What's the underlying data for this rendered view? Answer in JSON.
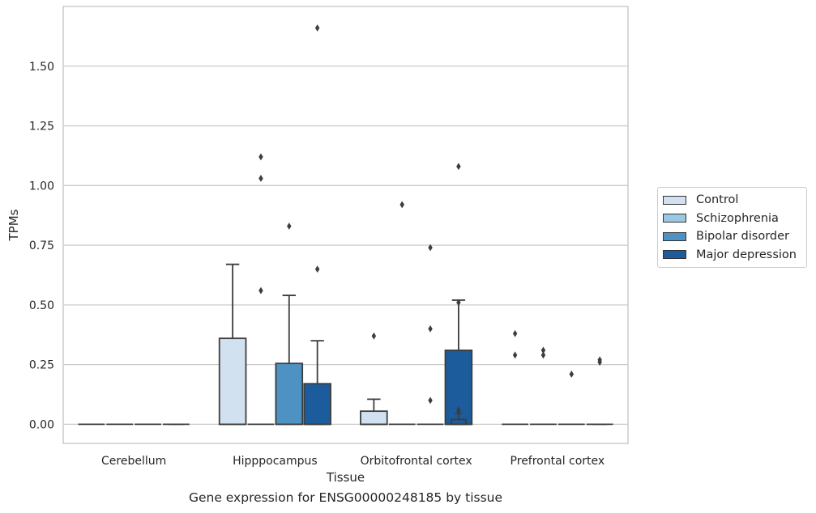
{
  "chart_data": {
    "type": "box",
    "xlabel": "Tissue",
    "ylabel": "TPMs",
    "caption": "Gene expression for ENSG00000248185 by tissue",
    "categories": [
      "Cerebellum",
      "Hipppocampus",
      "Orbitofrontal cortex",
      "Prefrontal cortex"
    ],
    "ylim": [
      -0.08,
      1.75
    ],
    "yticks": [
      0.0,
      0.25,
      0.5,
      0.75,
      1.0,
      1.25,
      1.5
    ],
    "ytick_labels": [
      "0.00",
      "0.25",
      "0.50",
      "0.75",
      "1.00",
      "1.25",
      "1.50"
    ],
    "grid": true,
    "legend_position": "right, outside plot",
    "series": [
      {
        "name": "Control",
        "color": "#d2e1f0",
        "boxes": [
          {
            "q1": 0,
            "median": 0,
            "q3": 0,
            "whisker_low": 0,
            "whisker_high": 0,
            "outliers": []
          },
          {
            "q1": 0,
            "median": 0,
            "q3": 0.36,
            "whisker_low": 0,
            "whisker_high": 0.67,
            "outliers": []
          },
          {
            "q1": 0,
            "median": 0,
            "q3": 0.055,
            "whisker_low": 0,
            "whisker_high": 0.105,
            "outliers": [
              0.37
            ]
          },
          {
            "q1": 0,
            "median": 0,
            "q3": 0,
            "whisker_low": 0,
            "whisker_high": 0,
            "outliers": [
              0.38,
              0.29
            ]
          }
        ]
      },
      {
        "name": "Schizophrenia",
        "color": "#9ac8e0",
        "boxes": [
          {
            "q1": 0,
            "median": 0,
            "q3": 0,
            "whisker_low": 0,
            "whisker_high": 0,
            "outliers": []
          },
          {
            "q1": 0,
            "median": 0,
            "q3": 0,
            "whisker_low": 0,
            "whisker_high": 0,
            "outliers": [
              1.12,
              1.03,
              0.56
            ]
          },
          {
            "q1": 0,
            "median": 0,
            "q3": 0,
            "whisker_low": 0,
            "whisker_high": 0,
            "outliers": [
              0.92
            ]
          },
          {
            "q1": 0,
            "median": 0,
            "q3": 0,
            "whisker_low": 0,
            "whisker_high": 0,
            "outliers": [
              0.31,
              0.29
            ]
          }
        ]
      },
      {
        "name": "Bipolar disorder",
        "color": "#4e92c3",
        "boxes": [
          {
            "q1": 0,
            "median": 0,
            "q3": 0,
            "whisker_low": 0,
            "whisker_high": 0,
            "outliers": []
          },
          {
            "q1": 0,
            "median": 0,
            "q3": 0.255,
            "whisker_low": 0,
            "whisker_high": 0.54,
            "outliers": [
              0.83
            ]
          },
          {
            "q1": 0,
            "median": 0,
            "q3": 0,
            "whisker_low": 0,
            "whisker_high": 0,
            "outliers": [
              0.74,
              0.4,
              0.1
            ]
          },
          {
            "q1": 0,
            "median": 0,
            "q3": 0,
            "whisker_low": 0,
            "whisker_high": 0,
            "outliers": [
              0.21
            ]
          }
        ]
      },
      {
        "name": "Major depression",
        "color": "#1c5c9c",
        "boxes": [
          {
            "q1": 0,
            "median": 0,
            "q3": 0,
            "whisker_low": 0,
            "whisker_high": 0,
            "outliers": []
          },
          {
            "q1": 0,
            "median": 0,
            "q3": 0.17,
            "whisker_low": 0,
            "whisker_high": 0.35,
            "outliers": [
              1.66,
              0.65
            ]
          },
          {
            "q1": 0,
            "median": 0,
            "q3": 0.31,
            "whisker_low": 0,
            "whisker_high": 0.52,
            "outliers": [
              1.08
            ]
          },
          {
            "q1": 0,
            "median": 0,
            "q3": 0,
            "whisker_low": 0,
            "whisker_high": 0,
            "outliers": [
              0.27,
              0.26
            ]
          }
        ]
      },
      {
        "name": "",
        "color": "#1c5c9c",
        "boxes": [
          {
            "q1": 0,
            "median": 0,
            "q3": 0,
            "whisker_low": 0,
            "whisker_high": 0,
            "outliers": []
          },
          {
            "q1": 0,
            "median": 0,
            "q3": 0,
            "whisker_low": 0,
            "whisker_high": 0,
            "outliers": []
          },
          {
            "q1": 0,
            "median": 0,
            "q3": 0.02,
            "whisker_low": 0,
            "whisker_high": 0.045,
            "outliers": [
              0.51,
              0.06,
              0.055
            ]
          },
          {
            "q1": 0,
            "median": 0,
            "q3": 0,
            "whisker_low": 0,
            "whisker_high": 0,
            "outliers": []
          }
        ]
      }
    ]
  }
}
